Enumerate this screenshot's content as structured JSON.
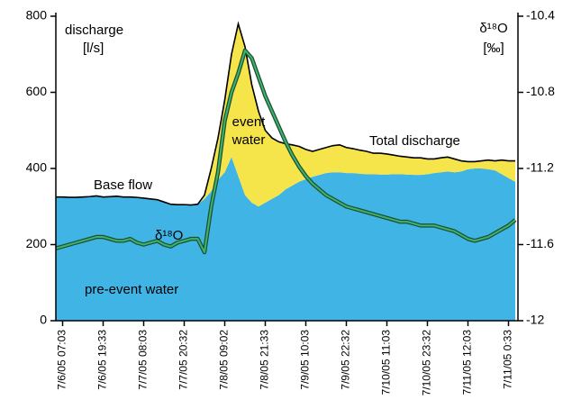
{
  "chart_data": {
    "type": "stacked_area",
    "y_label": "discharge",
    "y_unit": "[l/s]",
    "y2_label": "δ¹⁸O",
    "y2_unit": "[‰]",
    "annotations": [
      "Base flow",
      "Total discharge",
      "event",
      "water",
      "pre-event water",
      "δ¹⁸O"
    ],
    "categories": [
      null,
      "7/6/05 07:03",
      null,
      null,
      null,
      null,
      null,
      "7/6/05 19:33",
      null,
      null,
      null,
      null,
      null,
      "7/7/05 08:03",
      null,
      null,
      null,
      null,
      null,
      "7/7/05 20:32",
      null,
      null,
      null,
      null,
      null,
      "7/8/05 09:02",
      null,
      null,
      null,
      null,
      null,
      "7/8/05 21:33",
      null,
      null,
      null,
      null,
      null,
      "7/9/05 10:03",
      null,
      null,
      null,
      null,
      null,
      "7/9/05 22:32",
      null,
      null,
      null,
      null,
      null,
      "7/10/05 11:03",
      null,
      null,
      null,
      null,
      null,
      "7/10/05 23:32",
      null,
      null,
      null,
      null,
      null,
      "7/11/05 12:03",
      null,
      null,
      null,
      null,
      null,
      "7/11/05 0:33",
      null
    ],
    "series": [
      {
        "name": "pre-event water",
        "color": "#41b4e6",
        "values": [
          325,
          325,
          324,
          324,
          325,
          326,
          328,
          325,
          326,
          327,
          325,
          325,
          324,
          322,
          320,
          318,
          312,
          306,
          305,
          305,
          304,
          306,
          320,
          340,
          370,
          390,
          430,
          380,
          330,
          310,
          300,
          310,
          320,
          330,
          345,
          355,
          365,
          372,
          378,
          383,
          388,
          390,
          390,
          388,
          388,
          386,
          385,
          385,
          384,
          384,
          385,
          385,
          384,
          383,
          383,
          385,
          388,
          390,
          392,
          390,
          392,
          398,
          400,
          400,
          398,
          395,
          385,
          375,
          365
        ]
      },
      {
        "name": "event water",
        "color": "#f5e44a",
        "values": [
          0,
          0,
          0,
          0,
          0,
          0,
          0,
          0,
          0,
          0,
          0,
          0,
          0,
          0,
          0,
          0,
          0,
          0,
          0,
          0,
          0,
          0,
          10,
          60,
          110,
          190,
          270,
          400,
          390,
          310,
          250,
          190,
          160,
          140,
          120,
          107,
          93,
          78,
          67,
          67,
          67,
          70,
          72,
          67,
          64,
          62,
          60,
          55,
          56,
          54,
          50,
          47,
          46,
          45,
          45,
          40,
          37,
          38,
          38,
          35,
          28,
          20,
          18,
          20,
          24,
          25,
          37,
          45,
          55
        ]
      },
      {
        "name": "δ¹⁸O",
        "color": "#3cb371",
        "axis": "y2",
        "values": [
          -11.62,
          -11.61,
          -11.6,
          -11.59,
          -11.58,
          -11.57,
          -11.56,
          -11.56,
          -11.57,
          -11.58,
          -11.58,
          -11.57,
          -11.59,
          -11.6,
          -11.59,
          -11.58,
          -11.6,
          -11.61,
          -11.59,
          -11.58,
          -11.57,
          -11.57,
          -11.64,
          -11.4,
          -11.22,
          -10.95,
          -10.8,
          -10.7,
          -10.58,
          -10.62,
          -10.72,
          -10.82,
          -10.9,
          -10.98,
          -11.06,
          -11.13,
          -11.19,
          -11.24,
          -11.28,
          -11.31,
          -11.34,
          -11.36,
          -11.38,
          -11.4,
          -11.41,
          -11.42,
          -11.43,
          -11.44,
          -11.45,
          -11.46,
          -11.47,
          -11.48,
          -11.48,
          -11.49,
          -11.5,
          -11.5,
          -11.5,
          -11.51,
          -11.52,
          -11.53,
          -11.55,
          -11.57,
          -11.58,
          -11.57,
          -11.56,
          -11.54,
          -11.52,
          -11.5,
          -11.47
        ]
      }
    ],
    "ylim": [
      0,
      800
    ],
    "yticks": [
      0,
      200,
      400,
      600,
      800
    ],
    "y2lim": [
      -12,
      -10.4
    ],
    "y2ticks": [
      -12,
      -11.6,
      -11.2,
      -10.8,
      -10.4
    ],
    "total_line_color": "#000000"
  }
}
